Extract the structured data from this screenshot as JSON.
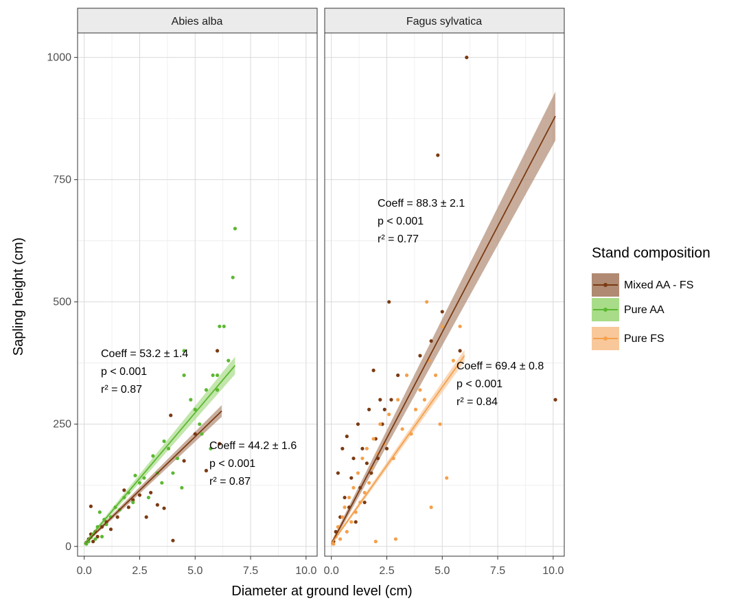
{
  "chart_data": {
    "type": "scatter",
    "xlabel": "Diameter at ground level (cm)",
    "ylabel": "Sapling height (cm)",
    "xlim": [
      -0.3,
      10.5
    ],
    "ylim": [
      -20,
      1050
    ],
    "x_ticks": [
      "0.0",
      "2.5",
      "5.0",
      "7.5",
      "10.0"
    ],
    "y_ticks": [
      "0",
      "250",
      "500",
      "750",
      "1000"
    ],
    "grid": true,
    "legend": {
      "title": "Stand composition",
      "placement": "right",
      "entries": [
        {
          "label": "Mixed AA - FS",
          "color": "#7b3a12",
          "band": "#b08a72"
        },
        {
          "label": "Pure AA",
          "color": "#5cb832",
          "band": "#a8dc88"
        },
        {
          "label": "Pure FS",
          "color": "#f4a04c",
          "band": "#f8c89a"
        }
      ]
    },
    "panels": [
      {
        "title": "Abies alba",
        "series": [
          {
            "name": "Mixed AA - FS",
            "color": "#7b3a12",
            "band": "#b08a72",
            "fit": {
              "x": [
                0.0,
                6.2
              ],
              "y": [
                5,
                277
              ],
              "se": [
                3,
                12
              ]
            },
            "points": [
              [
                0.1,
                8
              ],
              [
                0.2,
                15
              ],
              [
                0.3,
                25
              ],
              [
                0.3,
                82
              ],
              [
                0.4,
                10
              ],
              [
                0.5,
                30
              ],
              [
                0.6,
                20
              ],
              [
                0.8,
                40
              ],
              [
                1.0,
                50
              ],
              [
                1.2,
                35
              ],
              [
                1.5,
                60
              ],
              [
                1.8,
                115
              ],
              [
                2.0,
                80
              ],
              [
                2.2,
                95
              ],
              [
                2.5,
                105
              ],
              [
                2.8,
                60
              ],
              [
                3.0,
                110
              ],
              [
                3.3,
                85
              ],
              [
                3.6,
                78
              ],
              [
                3.9,
                268
              ],
              [
                4.0,
                12
              ],
              [
                4.5,
                175
              ],
              [
                5.0,
                230
              ],
              [
                5.5,
                155
              ],
              [
                6.0,
                400
              ],
              [
                6.1,
                210
              ]
            ]
          },
          {
            "name": "Pure AA",
            "color": "#5cb832",
            "band": "#a8dc88",
            "fit": {
              "x": [
                0.0,
                6.8
              ],
              "y": [
                5,
                370
              ],
              "se": [
                3,
                18
              ]
            },
            "points": [
              [
                0.1,
                5
              ],
              [
                0.2,
                10
              ],
              [
                0.3,
                18
              ],
              [
                0.4,
                25
              ],
              [
                0.5,
                15
              ],
              [
                0.6,
                40
              ],
              [
                0.7,
                70
              ],
              [
                0.8,
                20
              ],
              [
                0.9,
                55
              ],
              [
                1.0,
                45
              ],
              [
                1.2,
                60
              ],
              [
                1.4,
                80
              ],
              [
                1.6,
                75
              ],
              [
                1.8,
                100
              ],
              [
                2.0,
                110
              ],
              [
                2.2,
                90
              ],
              [
                2.3,
                145
              ],
              [
                2.5,
                130
              ],
              [
                2.7,
                140
              ],
              [
                2.9,
                100
              ],
              [
                3.1,
                185
              ],
              [
                3.3,
                150
              ],
              [
                3.5,
                130
              ],
              [
                3.6,
                215
              ],
              [
                3.8,
                200
              ],
              [
                4.0,
                150
              ],
              [
                4.2,
                180
              ],
              [
                4.4,
                120
              ],
              [
                4.5,
                400
              ],
              [
                4.5,
                350
              ],
              [
                4.8,
                300
              ],
              [
                5.0,
                280
              ],
              [
                5.2,
                250
              ],
              [
                5.3,
                230
              ],
              [
                5.5,
                320
              ],
              [
                5.7,
                200
              ],
              [
                5.8,
                350
              ],
              [
                6.0,
                350
              ],
              [
                6.0,
                320
              ],
              [
                6.1,
                450
              ],
              [
                6.3,
                450
              ],
              [
                6.7,
                550
              ],
              [
                6.8,
                650
              ],
              [
                6.5,
                380
              ]
            ]
          }
        ],
        "annotations": [
          {
            "lines": [
              "Coeff = 53.2 ± 1.4",
              "p < 0.001",
              "r² = 0.87"
            ]
          },
          {
            "lines": [
              "Coeff = 44.2 ± 1.6",
              "p < 0.001",
              "r² = 0.87"
            ]
          }
        ]
      },
      {
        "title": "Fagus sylvatica",
        "series": [
          {
            "name": "Mixed AA - FS",
            "color": "#7b3a12",
            "band": "#b08a72",
            "fit": {
              "x": [
                0.0,
                10.1
              ],
              "y": [
                5,
                880
              ],
              "se": [
                5,
                50
              ]
            },
            "points": [
              [
                0.1,
                10
              ],
              [
                0.2,
                30
              ],
              [
                0.3,
                150
              ],
              [
                0.4,
                60
              ],
              [
                0.5,
                200
              ],
              [
                0.6,
                100
              ],
              [
                0.7,
                225
              ],
              [
                0.8,
                80
              ],
              [
                0.9,
                140
              ],
              [
                1.0,
                180
              ],
              [
                1.1,
                50
              ],
              [
                1.2,
                250
              ],
              [
                1.3,
                120
              ],
              [
                1.4,
                200
              ],
              [
                1.5,
                90
              ],
              [
                1.6,
                170
              ],
              [
                1.7,
                280
              ],
              [
                1.8,
                150
              ],
              [
                1.9,
                360
              ],
              [
                2.0,
                220
              ],
              [
                2.1,
                180
              ],
              [
                2.2,
                300
              ],
              [
                2.3,
                250
              ],
              [
                2.4,
                280
              ],
              [
                2.5,
                200
              ],
              [
                2.6,
                500
              ],
              [
                2.7,
                300
              ],
              [
                3.0,
                350
              ],
              [
                4.0,
                390
              ],
              [
                4.5,
                420
              ],
              [
                4.8,
                800
              ],
              [
                5.0,
                480
              ],
              [
                5.8,
                400
              ],
              [
                6.1,
                1000
              ],
              [
                10.1,
                300
              ]
            ]
          },
          {
            "name": "Pure FS",
            "color": "#f4a04c",
            "band": "#f8c89a",
            "fit": {
              "x": [
                0.0,
                6.0
              ],
              "y": [
                5,
                390
              ],
              "se": [
                3,
                12
              ]
            },
            "points": [
              [
                0.1,
                5
              ],
              [
                0.2,
                20
              ],
              [
                0.3,
                40
              ],
              [
                0.4,
                15
              ],
              [
                0.5,
                60
              ],
              [
                0.6,
                80
              ],
              [
                0.7,
                30
              ],
              [
                0.8,
                100
              ],
              [
                0.9,
                50
              ],
              [
                1.0,
                120
              ],
              [
                1.1,
                70
              ],
              [
                1.2,
                150
              ],
              [
                1.3,
                90
              ],
              [
                1.4,
                180
              ],
              [
                1.5,
                110
              ],
              [
                1.6,
                200
              ],
              [
                1.7,
                130
              ],
              [
                1.8,
                160
              ],
              [
                1.9,
                220
              ],
              [
                2.0,
                10
              ],
              [
                2.1,
                190
              ],
              [
                2.2,
                250
              ],
              [
                2.4,
                210
              ],
              [
                2.6,
                270
              ],
              [
                2.8,
                180
              ],
              [
                2.9,
                15
              ],
              [
                3.0,
                300
              ],
              [
                3.2,
                240
              ],
              [
                3.4,
                350
              ],
              [
                3.6,
                230
              ],
              [
                3.8,
                280
              ],
              [
                4.0,
                320
              ],
              [
                4.2,
                300
              ],
              [
                4.3,
                500
              ],
              [
                4.4,
                380
              ],
              [
                4.5,
                80
              ],
              [
                4.7,
                350
              ],
              [
                4.9,
                250
              ],
              [
                5.0,
                450
              ],
              [
                5.2,
                140
              ],
              [
                5.5,
                380
              ],
              [
                5.8,
                450
              ]
            ]
          }
        ],
        "annotations": [
          {
            "lines": [
              "Coeff = 88.3 ± 2.1",
              "p < 0.001",
              "r² = 0.77"
            ]
          },
          {
            "lines": [
              "Coeff = 69.4 ± 0.8",
              "p < 0.001",
              "r² = 0.84"
            ]
          }
        ]
      }
    ]
  }
}
